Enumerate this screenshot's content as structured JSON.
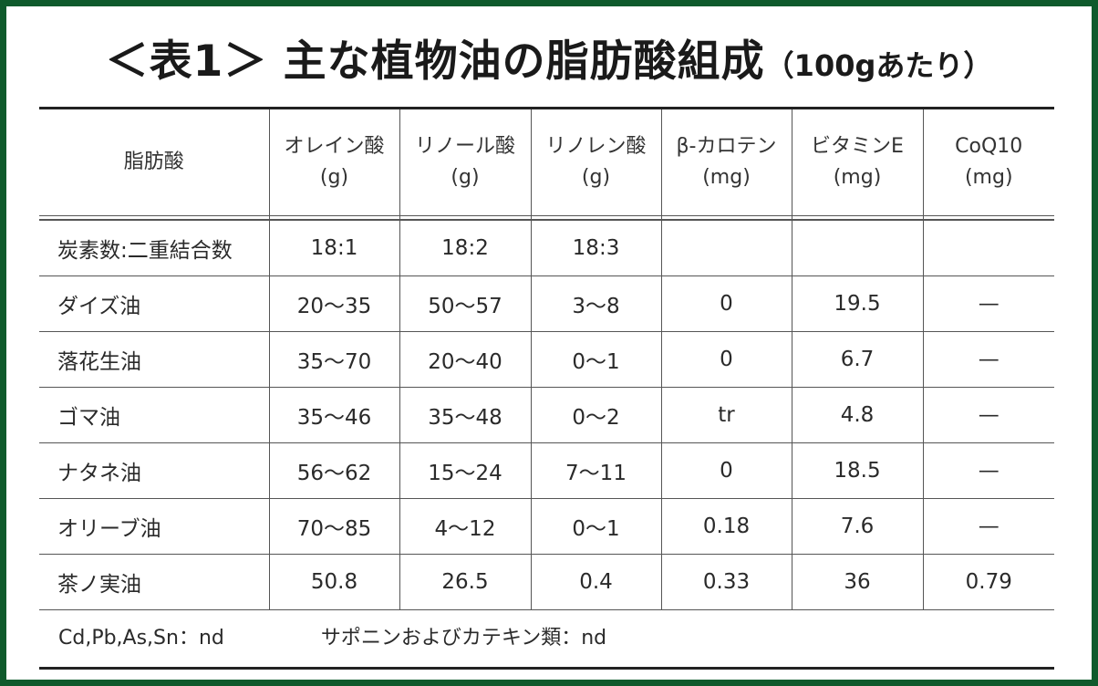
{
  "title": {
    "main": "＜表1＞ 主な植物油の脂肪酸組成",
    "sub": "（100gあたり）"
  },
  "colors": {
    "frame": "#0f5a2c",
    "rule": "#222222"
  },
  "table": {
    "headers": [
      {
        "name": "脂肪酸",
        "unit": ""
      },
      {
        "name": "オレイン酸",
        "unit": "(g)"
      },
      {
        "name": "リノール酸",
        "unit": "(g)"
      },
      {
        "name": "リノレン酸",
        "unit": "(g)"
      },
      {
        "name": "β-カロテン",
        "unit": "(mg)"
      },
      {
        "name": "ビタミンE",
        "unit": "(mg)"
      },
      {
        "name": "CoQ10",
        "unit": "(mg)"
      }
    ],
    "rows": [
      [
        "炭素数:二重結合数",
        "18:1",
        "18:2",
        "18:3",
        "",
        "",
        ""
      ],
      [
        "ダイズ油",
        "20〜35",
        "50〜57",
        "3〜8",
        "0",
        "19.5",
        "—"
      ],
      [
        "落花生油",
        "35〜70",
        "20〜40",
        "0〜1",
        "0",
        "6.7",
        "—"
      ],
      [
        "ゴマ油",
        "35〜46",
        "35〜48",
        "0〜2",
        "tr",
        "4.8",
        "—"
      ],
      [
        "ナタネ油",
        "56〜62",
        "15〜24",
        "7〜11",
        "0",
        "18.5",
        "—"
      ],
      [
        "オリーブ油",
        "70〜85",
        "4〜12",
        "0〜1",
        "0.18",
        "7.6",
        "—"
      ],
      [
        "茶ノ実油",
        "50.8",
        "26.5",
        "0.4",
        "0.33",
        "36",
        "0.79"
      ]
    ]
  },
  "footnote": {
    "left": "Cd,Pb,As,Sn：nd",
    "right": "サポニンおよびカテキン類：nd"
  }
}
